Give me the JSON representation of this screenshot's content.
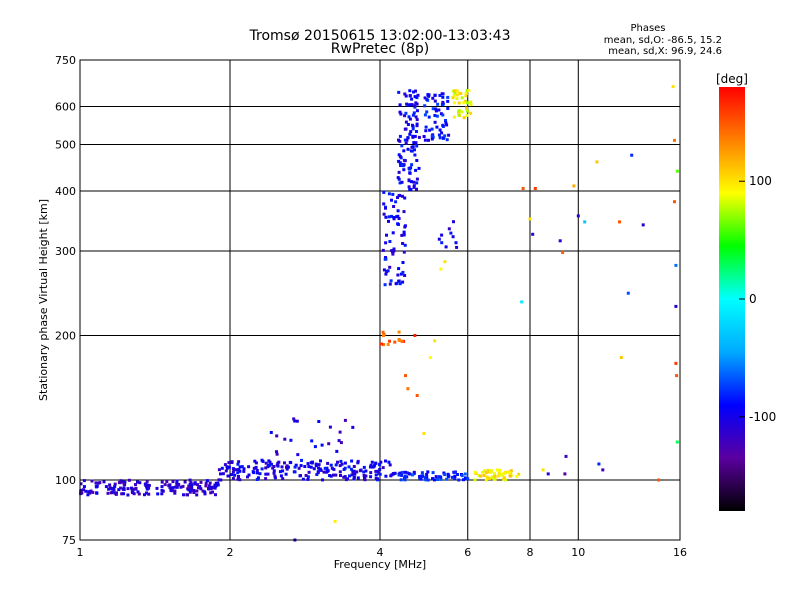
{
  "chart_data": {
    "type": "scatter",
    "title": "Tromsø 20150615 13:02:00-13:03:43",
    "subtitle": "RwPretec (8p)",
    "stats": {
      "heading": "Phases",
      "line1": "mean, sd,O: -86.5, 15.2",
      "line2": "mean, sd,X:  96.9, 24.6"
    },
    "xlabel": "Frequency [MHz]",
    "ylabel": "Stationary phase Virtual Height [km]",
    "x_scale": "log",
    "y_scale": "log",
    "xlim": [
      1,
      16
    ],
    "ylim": [
      75,
      750
    ],
    "x_ticks": [
      {
        "value": 1,
        "label": "1"
      },
      {
        "value": 2,
        "label": "2"
      },
      {
        "value": 4,
        "label": "4"
      },
      {
        "value": 6,
        "label": "6"
      },
      {
        "value": 8,
        "label": "8"
      },
      {
        "value": 10,
        "label": "10"
      },
      {
        "value": 16,
        "label": "16"
      }
    ],
    "y_ticks": [
      {
        "value": 75,
        "label": "75"
      },
      {
        "value": 100,
        "label": "100"
      },
      {
        "value": 200,
        "label": "200"
      },
      {
        "value": 300,
        "label": "300"
      },
      {
        "value": 400,
        "label": "400"
      },
      {
        "value": 500,
        "label": "500"
      },
      {
        "value": 600,
        "label": "600"
      },
      {
        "value": 750,
        "label": "750"
      }
    ],
    "grid": true,
    "colorbar": {
      "label": "[deg]",
      "range": [
        -180,
        180
      ],
      "ticks": [
        {
          "value": 100,
          "label": "100"
        },
        {
          "value": 0,
          "label": "0"
        },
        {
          "value": -100,
          "label": "-100"
        }
      ],
      "colors": [
        "#000000",
        "#5a00a0",
        "#0000ff",
        "#00aaff",
        "#00ffff",
        "#00ff00",
        "#ffff00",
        "#ff8000",
        "#ff0000"
      ]
    },
    "traces": [
      {
        "x_range": [
          1.0,
          1.9
        ],
        "y_range": [
          93,
          100
        ],
        "phase": -110,
        "count": 170
      },
      {
        "x_range": [
          1.9,
          4.2
        ],
        "y_range": [
          100,
          110
        ],
        "phase": -100,
        "count": 200
      },
      {
        "x_range": [
          2.4,
          3.6
        ],
        "y_range": [
          112,
          135
        ],
        "phase": -105,
        "count": 22
      },
      {
        "x_range": [
          4.2,
          6.0
        ],
        "y_range": [
          100,
          104
        ],
        "phase": -85,
        "count": 70
      },
      {
        "x_range": [
          6.2,
          7.6
        ],
        "y_range": [
          100,
          105
        ],
        "phase": 95,
        "count": 45
      },
      {
        "x_range": [
          4.0,
          4.5
        ],
        "y_range": [
          190,
          205
        ],
        "phase": 150,
        "count": 14
      },
      {
        "x_range": [
          4.05,
          4.5
        ],
        "y_range": [
          255,
          400
        ],
        "phase": -95,
        "count": 70
      },
      {
        "x_range": [
          4.35,
          4.8
        ],
        "y_range": [
          400,
          650
        ],
        "phase": -95,
        "count": 110
      },
      {
        "x_range": [
          4.9,
          5.5
        ],
        "y_range": [
          510,
          640
        ],
        "phase": -90,
        "count": 60
      },
      {
        "x_range": [
          5.6,
          6.1
        ],
        "y_range": [
          565,
          650
        ],
        "phase": 90,
        "count": 35
      },
      {
        "x_range": [
          5.2,
          5.7
        ],
        "y_range": [
          300,
          350
        ],
        "phase": -100,
        "count": 10
      }
    ],
    "points": [
      {
        "x": 2.7,
        "y": 75,
        "phase": -110
      },
      {
        "x": 3.25,
        "y": 82,
        "phase": 95
      },
      {
        "x": 4.5,
        "y": 165,
        "phase": 150
      },
      {
        "x": 4.55,
        "y": 155,
        "phase": 140
      },
      {
        "x": 4.7,
        "y": 200,
        "phase": 170
      },
      {
        "x": 4.75,
        "y": 150,
        "phase": 150
      },
      {
        "x": 4.9,
        "y": 125,
        "phase": 100
      },
      {
        "x": 5.05,
        "y": 180,
        "phase": 90
      },
      {
        "x": 5.15,
        "y": 195,
        "phase": 100
      },
      {
        "x": 5.3,
        "y": 275,
        "phase": 90
      },
      {
        "x": 5.4,
        "y": 285,
        "phase": 100
      },
      {
        "x": 7.7,
        "y": 235,
        "phase": -10
      },
      {
        "x": 7.75,
        "y": 405,
        "phase": 150
      },
      {
        "x": 8.1,
        "y": 325,
        "phase": -110
      },
      {
        "x": 8.0,
        "y": 350,
        "phase": 100
      },
      {
        "x": 8.2,
        "y": 405,
        "phase": 160
      },
      {
        "x": 8.5,
        "y": 105,
        "phase": 100
      },
      {
        "x": 8.7,
        "y": 103,
        "phase": -110
      },
      {
        "x": 9.2,
        "y": 315,
        "phase": -110
      },
      {
        "x": 9.3,
        "y": 298,
        "phase": 150
      },
      {
        "x": 9.4,
        "y": 103,
        "phase": -130
      },
      {
        "x": 9.45,
        "y": 112,
        "phase": -120
      },
      {
        "x": 9.8,
        "y": 410,
        "phase": 120
      },
      {
        "x": 10.0,
        "y": 355,
        "phase": -110
      },
      {
        "x": 10.3,
        "y": 345,
        "phase": -30
      },
      {
        "x": 10.9,
        "y": 460,
        "phase": 110
      },
      {
        "x": 11.0,
        "y": 108,
        "phase": -80
      },
      {
        "x": 11.2,
        "y": 105,
        "phase": -120
      },
      {
        "x": 12.1,
        "y": 345,
        "phase": 150
      },
      {
        "x": 12.2,
        "y": 180,
        "phase": 110
      },
      {
        "x": 12.6,
        "y": 245,
        "phase": -70
      },
      {
        "x": 12.8,
        "y": 475,
        "phase": -80
      },
      {
        "x": 13.5,
        "y": 340,
        "phase": -110
      },
      {
        "x": 14.5,
        "y": 100,
        "phase": 150
      },
      {
        "x": 15.5,
        "y": 660,
        "phase": 100
      },
      {
        "x": 15.6,
        "y": 510,
        "phase": 140
      },
      {
        "x": 15.6,
        "y": 380,
        "phase": 150
      },
      {
        "x": 15.7,
        "y": 280,
        "phase": -60
      },
      {
        "x": 15.7,
        "y": 230,
        "phase": -110
      },
      {
        "x": 15.7,
        "y": 175,
        "phase": 160
      },
      {
        "x": 15.75,
        "y": 165,
        "phase": 150
      },
      {
        "x": 15.8,
        "y": 120,
        "phase": 30
      },
      {
        "x": 15.8,
        "y": 440,
        "phase": 60
      }
    ]
  }
}
